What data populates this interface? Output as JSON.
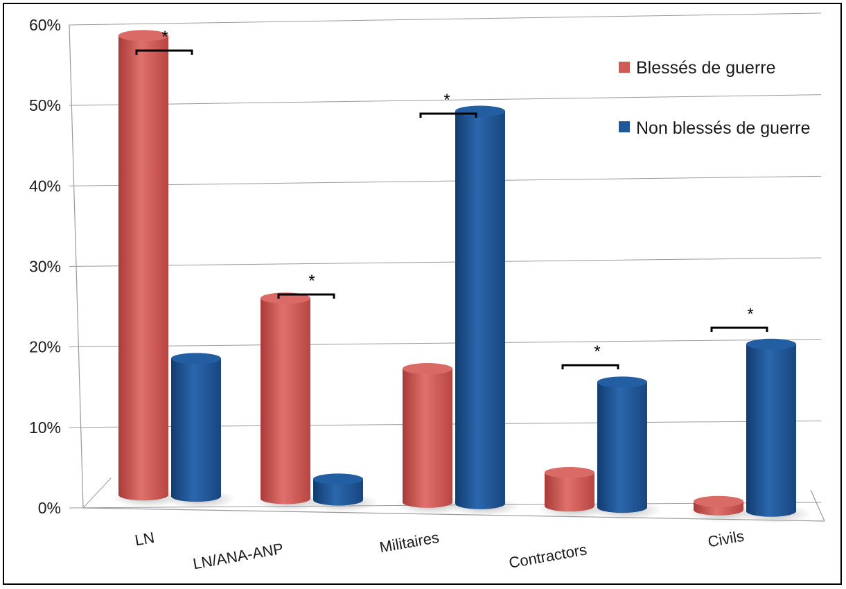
{
  "chart_data": {
    "type": "bar",
    "categories": [
      "LN",
      "LN/ANA-ANP",
      "Militaires",
      "Contractors",
      "Civils"
    ],
    "series": [
      {
        "name": "Blessés de guerre",
        "values": [
          55,
          24,
          16,
          4,
          1
        ],
        "color": "#cf5b57"
      },
      {
        "name": "Non blessés de guerre",
        "values": [
          16.5,
          2.5,
          47,
          15,
          20
        ],
        "color": "#1f5799"
      }
    ],
    "y_ticks": [
      "0%",
      "10%",
      "20%",
      "30%",
      "40%",
      "50%",
      "60%"
    ],
    "ylim": [
      0,
      60
    ],
    "significance": [
      "*",
      "*",
      "*",
      "*",
      "*"
    ],
    "legend_position": "top-right",
    "grid": true
  }
}
